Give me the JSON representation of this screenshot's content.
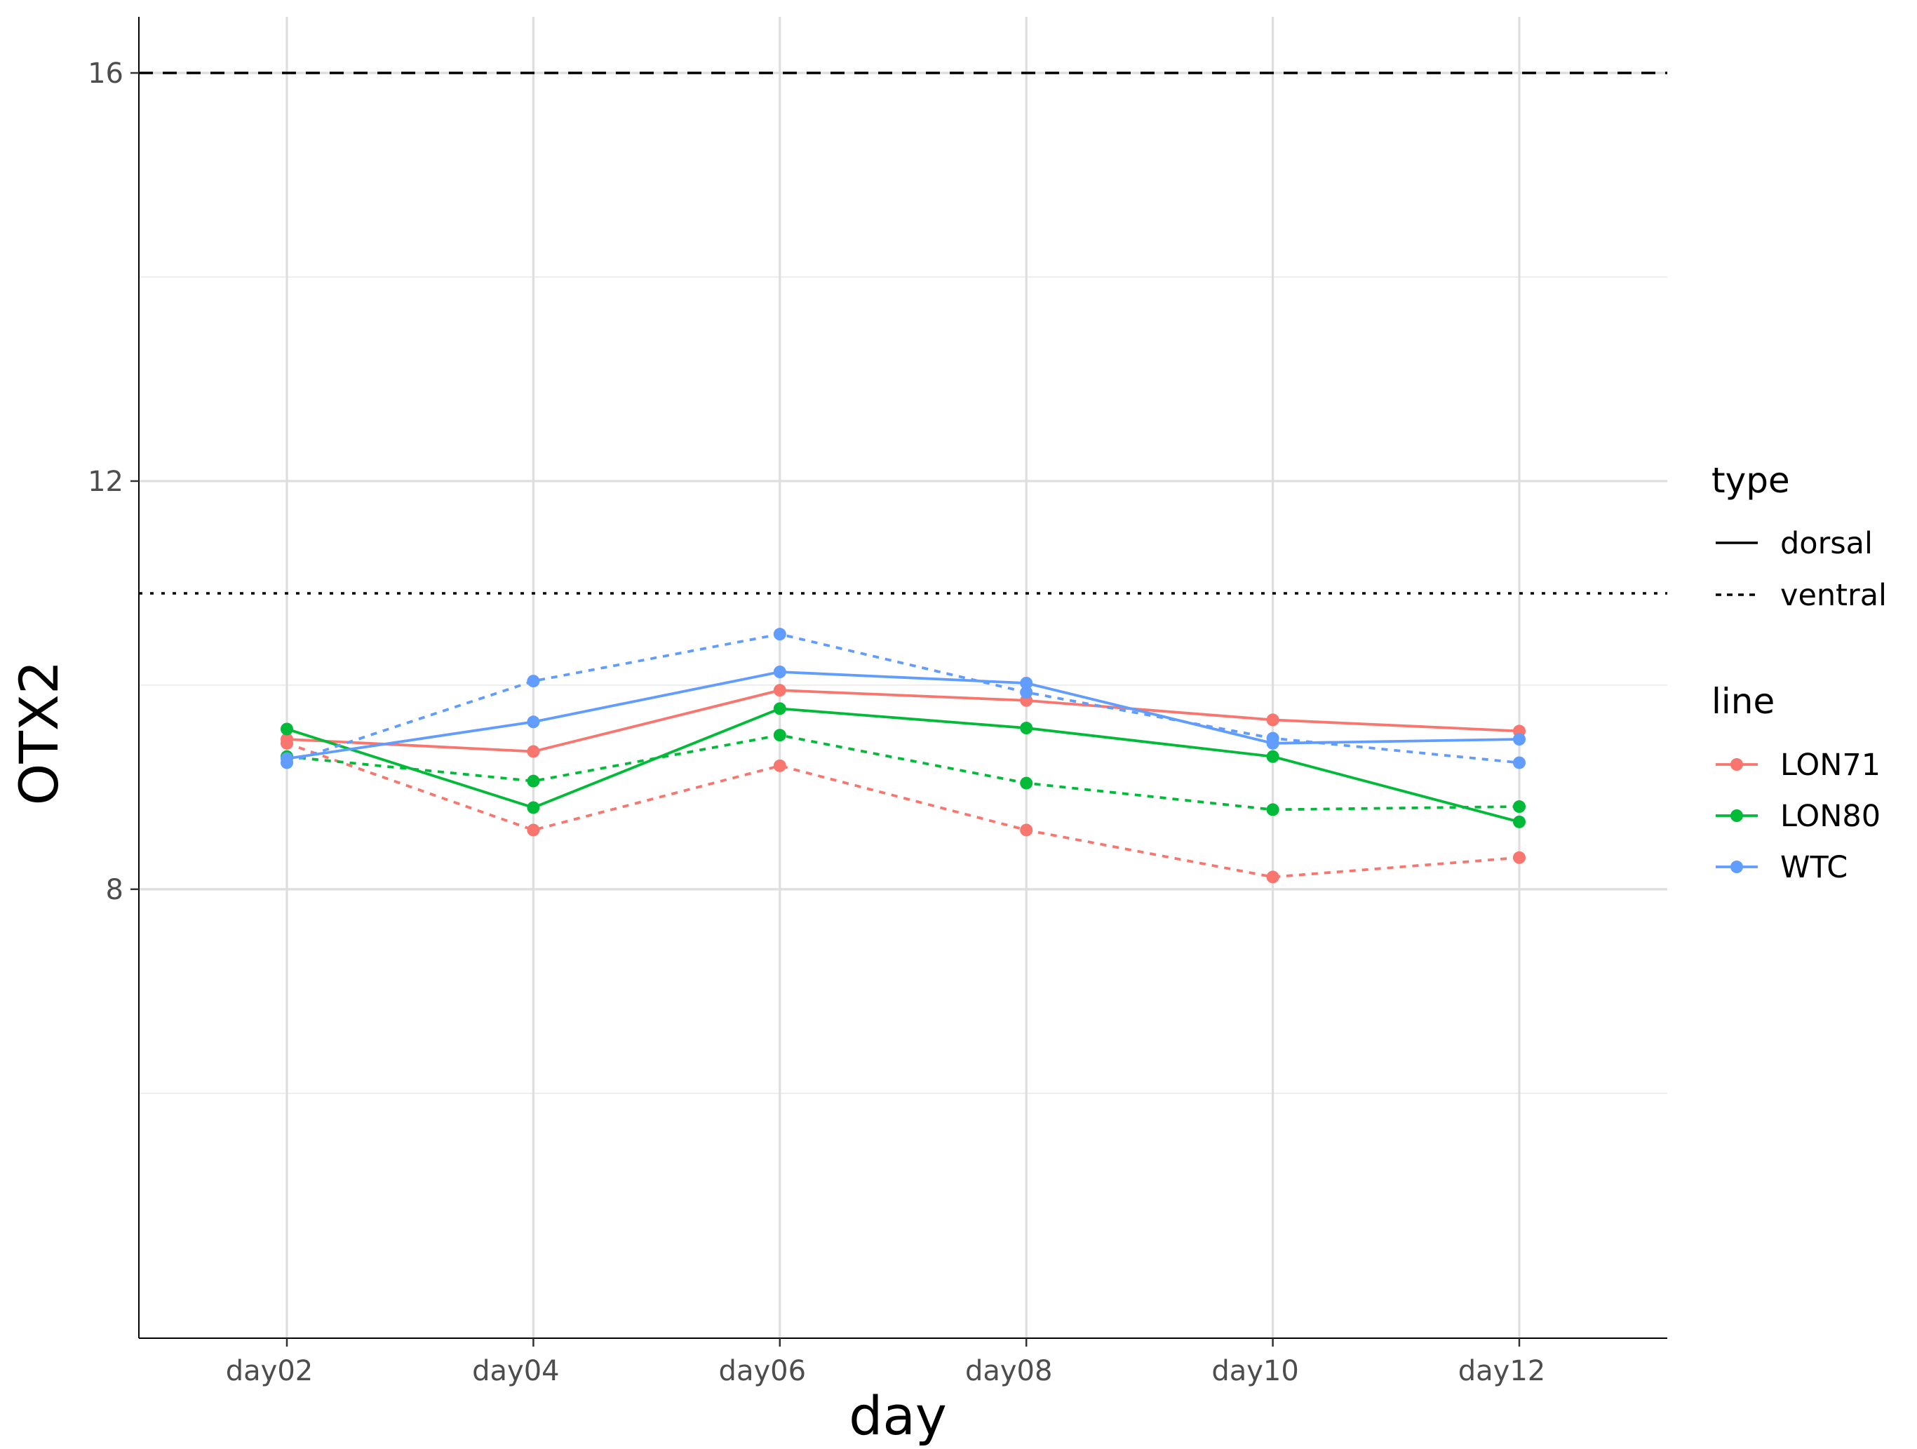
{
  "chart_data": {
    "type": "line",
    "xlabel": "day",
    "ylabel": "OTX2",
    "categories": [
      "day02",
      "day04",
      "day06",
      "day08",
      "day10",
      "day12"
    ],
    "ylim": [
      3.6,
      16.0
    ],
    "y_ticks": [
      8,
      12,
      16
    ],
    "y_ticks_labels": [
      "8",
      "12",
      "16"
    ],
    "grid": true,
    "reference_lines": [
      {
        "y": 16.0,
        "style": "dashed"
      },
      {
        "y": 10.9,
        "style": "dotted"
      }
    ],
    "legend_position": "right",
    "legends": {
      "type": {
        "title": "type",
        "entries": [
          "dorsal",
          "ventral"
        ]
      },
      "line": {
        "title": "line",
        "entries": [
          "LON71",
          "LON80",
          "WTC"
        ]
      }
    },
    "colors": {
      "LON71": "#F8766D",
      "LON80": "#00BA38",
      "WTC": "#619CFF"
    },
    "series": [
      {
        "line": "LON71",
        "type": "dorsal",
        "values": [
          9.47,
          9.35,
          9.95,
          9.85,
          9.66,
          9.55
        ]
      },
      {
        "line": "LON71",
        "type": "ventral",
        "values": [
          9.43,
          8.58,
          9.21,
          8.58,
          8.12,
          8.31
        ]
      },
      {
        "line": "LON80",
        "type": "dorsal",
        "values": [
          9.57,
          8.8,
          9.77,
          9.58,
          9.3,
          8.66
        ]
      },
      {
        "line": "LON80",
        "type": "ventral",
        "values": [
          9.3,
          9.06,
          9.51,
          9.04,
          8.78,
          8.81
        ]
      },
      {
        "line": "WTC",
        "type": "dorsal",
        "values": [
          9.28,
          9.64,
          10.13,
          10.02,
          9.43,
          9.47
        ]
      },
      {
        "line": "WTC",
        "type": "ventral",
        "values": [
          9.24,
          10.04,
          10.5,
          9.93,
          9.48,
          9.24
        ]
      }
    ]
  }
}
